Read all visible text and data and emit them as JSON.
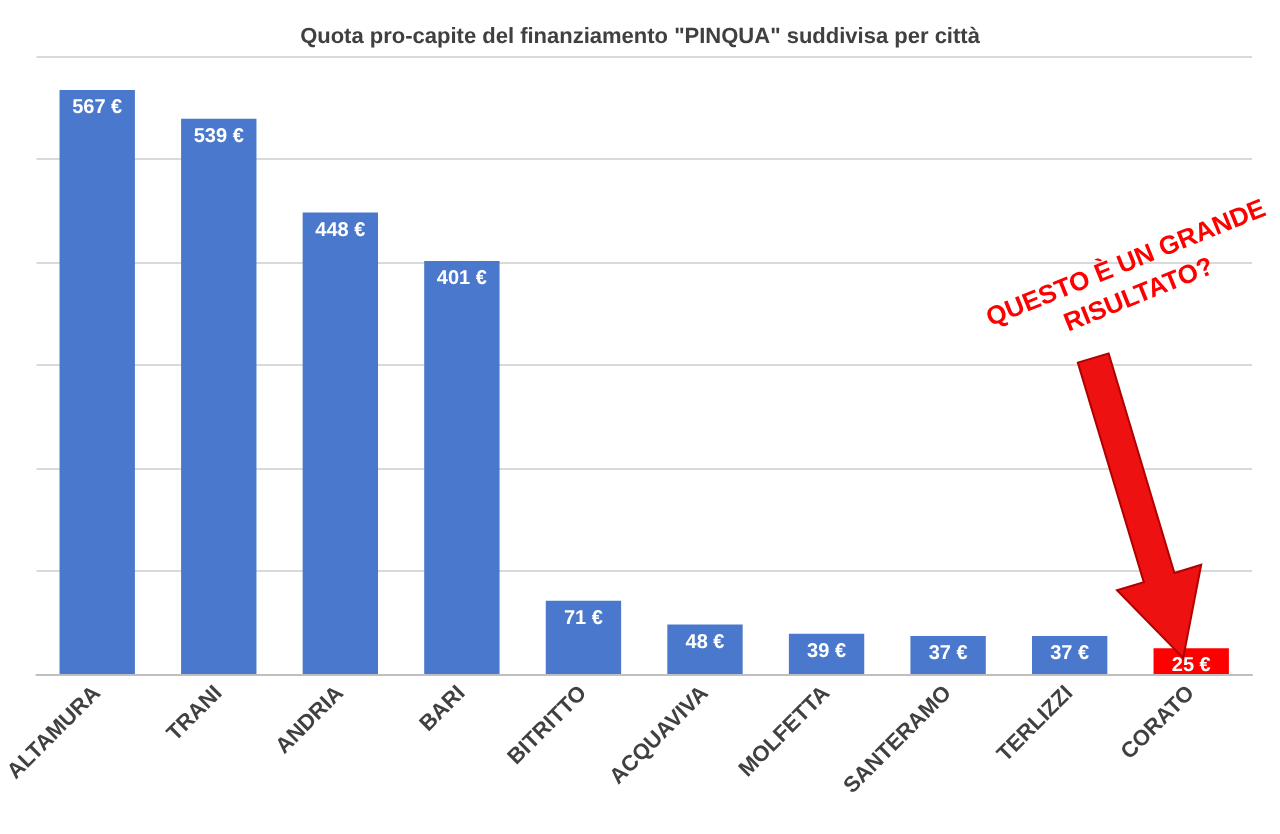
{
  "chart_data": {
    "type": "bar",
    "title": "Quota pro-capite del finanziamento \"PINQUA\" suddivisa per città",
    "categories": [
      "ALTAMURA",
      "TRANI",
      "ANDRIA",
      "BARI",
      "BITRITTO",
      "ACQUAVIVA",
      "MOLFETTA",
      "SANTERAMO",
      "TERLIZZI",
      "CORATO"
    ],
    "values": [
      567,
      539,
      448,
      401,
      71,
      48,
      39,
      37,
      37,
      25
    ],
    "value_labels": [
      "567 €",
      "539 €",
      "448 €",
      "401 €",
      "71 €",
      "48 €",
      "39 €",
      "37 €",
      "37 €",
      "25 €"
    ],
    "colors": [
      "#4a78cc",
      "#4a78cc",
      "#4a78cc",
      "#4a78cc",
      "#4a78cc",
      "#4a78cc",
      "#4a78cc",
      "#4a78cc",
      "#4a78cc",
      "#ff0000"
    ],
    "ylim": [
      0,
      600
    ],
    "yticks": [
      0,
      100,
      200,
      300,
      400,
      500,
      600
    ],
    "grid": "y",
    "tick_labels": "x",
    "annotations": [
      "QUESTO È UN GRANDE RISULTATO?"
    ]
  }
}
